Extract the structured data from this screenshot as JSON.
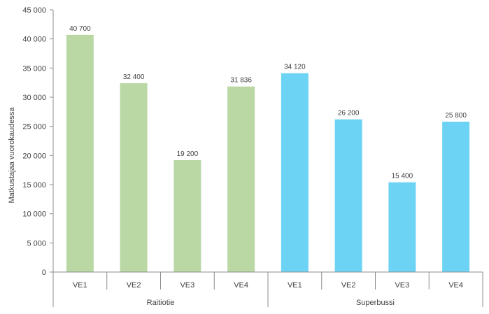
{
  "chart_data": {
    "type": "bar",
    "ylabel": "Matkustajaa vuorokaudessa",
    "ylim": [
      0,
      45000
    ],
    "yticks": [
      {
        "value": 0,
        "label": "0"
      },
      {
        "value": 5000,
        "label": "5 000"
      },
      {
        "value": 10000,
        "label": "10 000"
      },
      {
        "value": 15000,
        "label": "15 000"
      },
      {
        "value": 20000,
        "label": "20 000"
      },
      {
        "value": 25000,
        "label": "25 000"
      },
      {
        "value": 30000,
        "label": "30 000"
      },
      {
        "value": 35000,
        "label": "35 000"
      },
      {
        "value": 40000,
        "label": "40 000"
      },
      {
        "value": 45000,
        "label": "45 000"
      }
    ],
    "grid": false,
    "legend": "none",
    "groups": [
      {
        "name": "Raitiotie",
        "color": "#b9d8a4",
        "categories": [
          "VE1",
          "VE2",
          "VE3",
          "VE4"
        ],
        "values": [
          40700,
          32400,
          19200,
          31836
        ],
        "labels": [
          "40 700",
          "32 400",
          "19 200",
          "31 836"
        ]
      },
      {
        "name": "Superbussi",
        "color": "#6dd3f5",
        "categories": [
          "VE1",
          "VE2",
          "VE3",
          "VE4"
        ],
        "values": [
          34120,
          26200,
          15400,
          25800
        ],
        "labels": [
          "34 120",
          "26 200",
          "15 400",
          "25 800"
        ]
      }
    ]
  }
}
